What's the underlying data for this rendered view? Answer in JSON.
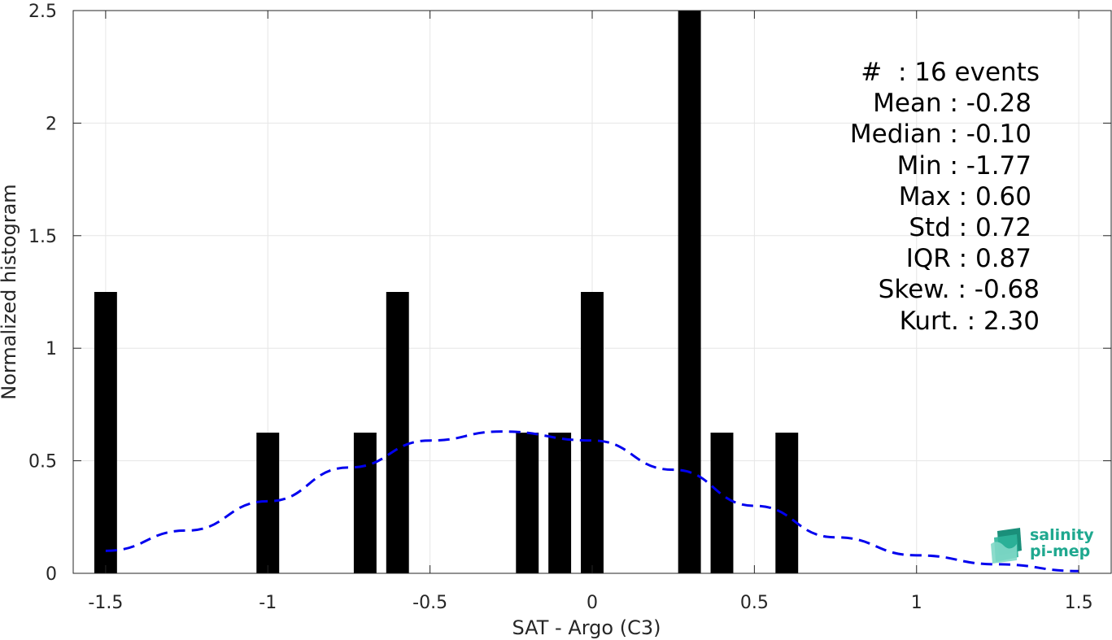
{
  "chart_data": {
    "type": "bar",
    "xlabel": "SAT - Argo (C3)",
    "ylabel": "Normalized histogram",
    "xlim": [
      -1.6,
      1.6
    ],
    "ylim": [
      0,
      2.5
    ],
    "xticks": [
      -1.5,
      -1,
      -0.5,
      0,
      0.5,
      1,
      1.5
    ],
    "xtick_labels": [
      "-1.5",
      "-1",
      "-0.5",
      "0",
      "0.5",
      "1",
      "1.5"
    ],
    "yticks": [
      0,
      0.5,
      1,
      1.5,
      2,
      2.5
    ],
    "ytick_labels": [
      "0",
      "0.5",
      "1",
      "1.5",
      "2",
      "2.5"
    ],
    "grid": true,
    "bar_color": "#000000",
    "bar_width": 0.07,
    "bars": {
      "x": [
        -1.5,
        -1.0,
        -0.7,
        -0.6,
        -0.2,
        -0.1,
        0.0,
        0.3,
        0.4,
        0.6
      ],
      "values": [
        1.25,
        0.625,
        0.625,
        1.25,
        0.625,
        0.625,
        1.25,
        2.5,
        0.625,
        0.625
      ]
    },
    "fit_curve": {
      "style": "dashed",
      "color": "#0000ee",
      "x": [
        -1.5,
        -1.25,
        -1.0,
        -0.75,
        -0.5,
        -0.28,
        0.0,
        0.25,
        0.5,
        0.75,
        1.0,
        1.25,
        1.5
      ],
      "values": [
        0.1,
        0.19,
        0.32,
        0.47,
        0.59,
        0.63,
        0.59,
        0.46,
        0.3,
        0.16,
        0.08,
        0.04,
        0.01
      ]
    },
    "stats_lines": [
      "#  : 16 events",
      "Mean : -0.28",
      "Median : -0.10",
      "Min : -1.77",
      "Max : 0.60",
      "Std : 0.72",
      "IQR : 0.87",
      "Skew. : -0.68",
      "Kurt. : 2.30"
    ]
  },
  "logo": {
    "line1": "salinity",
    "line2": "pi-mep",
    "color": "#1fa88f"
  }
}
